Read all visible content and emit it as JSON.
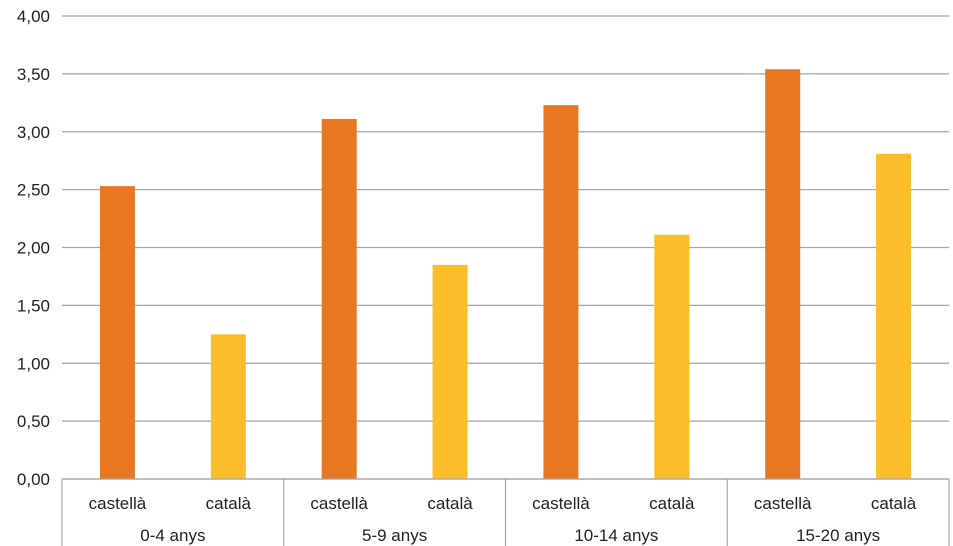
{
  "chart_data": {
    "type": "bar",
    "title": "",
    "xlabel": "",
    "ylabel": "",
    "ylim": [
      0,
      4
    ],
    "y_ticks": [
      "0,00",
      "0,50",
      "1,00",
      "1,50",
      "2,00",
      "2,50",
      "3,00",
      "3,50",
      "4,00"
    ],
    "grid": true,
    "groups": [
      {
        "label": "0-4 anys",
        "bars": [
          {
            "label": "castellà",
            "value": 2.53
          },
          {
            "label": "català",
            "value": 1.25
          }
        ]
      },
      {
        "label": "5-9 anys",
        "bars": [
          {
            "label": "castellà",
            "value": 3.11
          },
          {
            "label": "català",
            "value": 1.85
          }
        ]
      },
      {
        "label": "10-14 anys",
        "bars": [
          {
            "label": "castellà",
            "value": 3.23
          },
          {
            "label": "català",
            "value": 2.11
          }
        ]
      },
      {
        "label": "15-20 anys",
        "bars": [
          {
            "label": "castellà",
            "value": 3.54
          },
          {
            "label": "català",
            "value": 2.81
          }
        ]
      }
    ],
    "colors": {
      "castellà": "#e87722",
      "català": "#fbbd29"
    }
  }
}
